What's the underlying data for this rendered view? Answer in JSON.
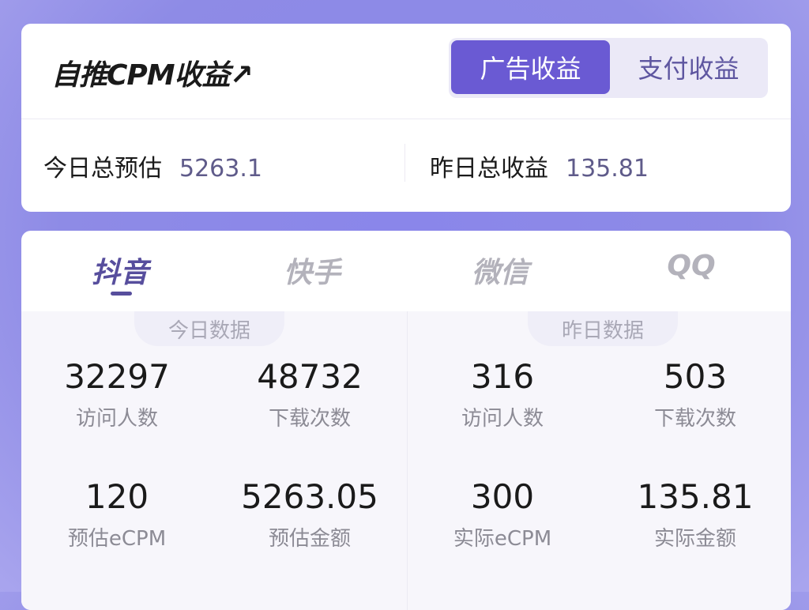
{
  "header": {
    "title": "自推CPM收益↗",
    "toggle": [
      {
        "label": "广告收益",
        "active": true
      },
      {
        "label": "支付收益",
        "active": false
      }
    ]
  },
  "summary": {
    "today_label": "今日总预估",
    "today_value": "5263.1",
    "yesterday_label": "昨日总收益",
    "yesterday_value": "135.81"
  },
  "tabs": [
    {
      "label": "抖音",
      "active": true
    },
    {
      "label": "快手"
    },
    {
      "label": "微信"
    },
    {
      "label": "QQ"
    }
  ],
  "today": {
    "label": "今日数据",
    "metrics": [
      {
        "value": "32297",
        "label": "访问人数"
      },
      {
        "value": "48732",
        "label": "下载次数"
      },
      {
        "value": "120",
        "label": "预估eCPM"
      },
      {
        "value": "5263.05",
        "label": "预估金额"
      }
    ]
  },
  "yesterday": {
    "label": "昨日数据",
    "metrics": [
      {
        "value": "316",
        "label": "访问人数"
      },
      {
        "value": "503",
        "label": "下载次数"
      },
      {
        "value": "300",
        "label": "实际eCPM"
      },
      {
        "value": "135.81",
        "label": "实际金额"
      }
    ]
  },
  "colors": {
    "accent": "#6a5ad3",
    "tab_active": "#574e9d"
  }
}
